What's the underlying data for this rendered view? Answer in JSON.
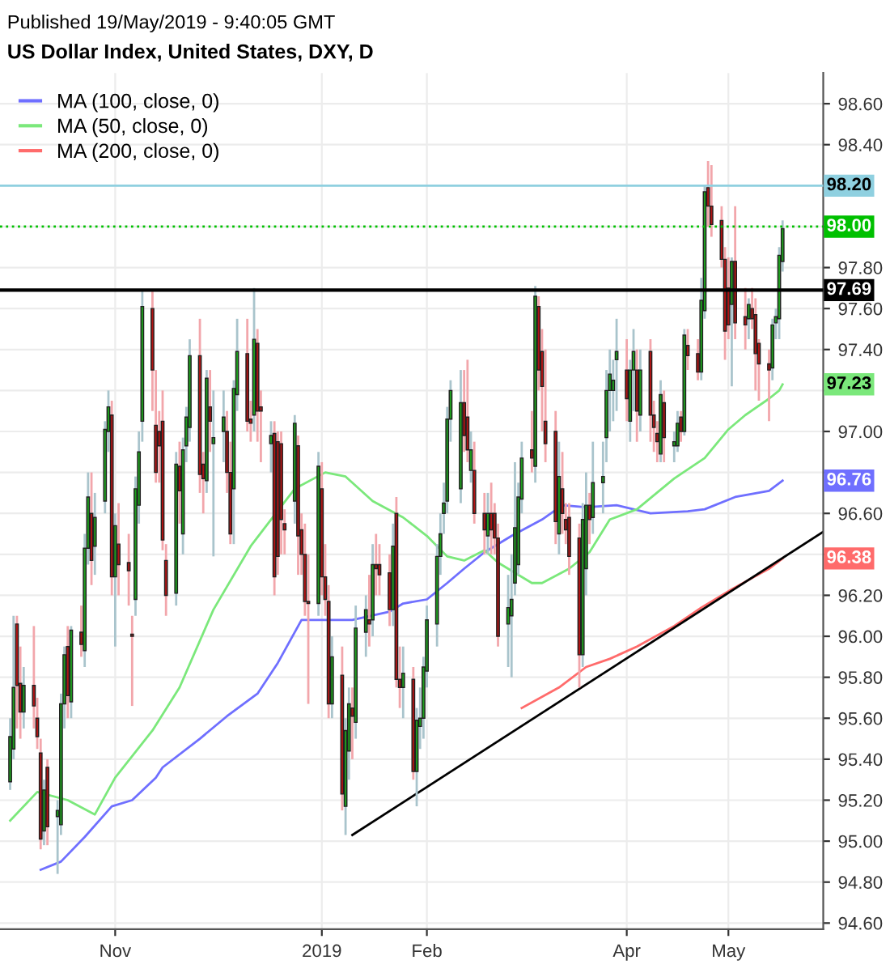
{
  "chart_data": {
    "type": "candlestick",
    "title": "US Dollar Index, United States, DXY, D",
    "annotations": [
      "Published 19/May/2019 - 9:40:05 GMT",
      {
        "text": "97.23",
        "x": "2019-05-17",
        "y": 97.23
      },
      {
        "text": "96.76",
        "x": "2019-05-17",
        "y": 96.76
      },
      {
        "text": "96.38",
        "x": "2019-05-17",
        "y": 96.38
      }
    ],
    "x": [
      "2018-10-01",
      "2018-10-02",
      "2018-10-03",
      "2018-10-04",
      "2018-10-05",
      "2018-10-08",
      "2018-10-09",
      "2018-10-10",
      "2018-10-11",
      "2018-10-12",
      "2018-10-15",
      "2018-10-16",
      "2018-10-17",
      "2018-10-18",
      "2018-10-19",
      "2018-10-22",
      "2018-10-23",
      "2018-10-24",
      "2018-10-25",
      "2018-10-26",
      "2018-10-29",
      "2018-10-30",
      "2018-10-31",
      "2018-11-01",
      "2018-11-02",
      "2018-11-05",
      "2018-11-06",
      "2018-11-07",
      "2018-11-08",
      "2018-11-09",
      "2018-11-12",
      "2018-11-13",
      "2018-11-14",
      "2018-11-15",
      "2018-11-16",
      "2018-11-19",
      "2018-11-20",
      "2018-11-21",
      "2018-11-22",
      "2018-11-23",
      "2018-11-26",
      "2018-11-27",
      "2018-11-28",
      "2018-11-29",
      "2018-11-30",
      "2018-12-03",
      "2018-12-04",
      "2018-12-05",
      "2018-12-06",
      "2018-12-07",
      "2018-12-10",
      "2018-12-11",
      "2018-12-12",
      "2018-12-13",
      "2018-12-14",
      "2018-12-17",
      "2018-12-18",
      "2018-12-19",
      "2018-12-20",
      "2018-12-21",
      "2018-12-24",
      "2018-12-25",
      "2018-12-26",
      "2018-12-27",
      "2018-12-28",
      "2018-12-31",
      "2019-01-01",
      "2019-01-02",
      "2019-01-03",
      "2019-01-04",
      "2019-01-07",
      "2019-01-08",
      "2019-01-09",
      "2019-01-10",
      "2019-01-11",
      "2019-01-14",
      "2019-01-15",
      "2019-01-16",
      "2019-01-17",
      "2019-01-18",
      "2019-01-21",
      "2019-01-22",
      "2019-01-23",
      "2019-01-24",
      "2019-01-25",
      "2019-01-28",
      "2019-01-29",
      "2019-01-30",
      "2019-01-31",
      "2019-02-01",
      "2019-02-04",
      "2019-02-05",
      "2019-02-06",
      "2019-02-07",
      "2019-02-08",
      "2019-02-11",
      "2019-02-12",
      "2019-02-13",
      "2019-02-14",
      "2019-02-15",
      "2019-02-18",
      "2019-02-19",
      "2019-02-20",
      "2019-02-21",
      "2019-02-22",
      "2019-02-25",
      "2019-02-26",
      "2019-02-27",
      "2019-02-28",
      "2019-03-01",
      "2019-03-04",
      "2019-03-05",
      "2019-03-06",
      "2019-03-07",
      "2019-03-08",
      "2019-03-11",
      "2019-03-12",
      "2019-03-13",
      "2019-03-14",
      "2019-03-15",
      "2019-03-18",
      "2019-03-19",
      "2019-03-20",
      "2019-03-21",
      "2019-03-22",
      "2019-03-25",
      "2019-03-26",
      "2019-03-27",
      "2019-03-28",
      "2019-03-29",
      "2019-04-01",
      "2019-04-02",
      "2019-04-03",
      "2019-04-04",
      "2019-04-05",
      "2019-04-08",
      "2019-04-09",
      "2019-04-10",
      "2019-04-11",
      "2019-04-12",
      "2019-04-15",
      "2019-04-16",
      "2019-04-17",
      "2019-04-18",
      "2019-04-19",
      "2019-04-22",
      "2019-04-23",
      "2019-04-24",
      "2019-04-25",
      "2019-04-26",
      "2019-04-29",
      "2019-04-30",
      "2019-05-01",
      "2019-05-02",
      "2019-05-03",
      "2019-05-06",
      "2019-05-07",
      "2019-05-08",
      "2019-05-09",
      "2019-05-10",
      "2019-05-13",
      "2019-05-14",
      "2019-05-15",
      "2019-05-16",
      "2019-05-17"
    ],
    "ohlc": [
      [
        95.29,
        95.6,
        95.25,
        95.51
      ],
      [
        95.45,
        96.1,
        95.4,
        95.75
      ],
      [
        96.06,
        96.1,
        95.55,
        95.76
      ],
      [
        95.77,
        95.95,
        95.5,
        95.63
      ],
      [
        95.63,
        95.85,
        95.55,
        95.76
      ],
      [
        95.76,
        96.05,
        95.55,
        95.66
      ],
      [
        95.6,
        95.7,
        95.45,
        95.51
      ],
      [
        95.43,
        95.5,
        94.96,
        95.01
      ],
      [
        95.05,
        95.3,
        94.98,
        95.25
      ],
      [
        95.36,
        95.4,
        94.98,
        95.07
      ],
      [
        95.12,
        95.2,
        94.84,
        95.15
      ],
      [
        95.08,
        95.72,
        95.03,
        95.67
      ],
      [
        95.67,
        95.95,
        95.55,
        95.91
      ],
      [
        95.95,
        96.05,
        95.6,
        95.71
      ],
      [
        95.68,
        96.05,
        95.6,
        96.03
      ],
      [
        96.02,
        96.15,
        95.9,
        95.96
      ],
      [
        95.93,
        96.5,
        95.85,
        96.43
      ],
      [
        96.43,
        96.8,
        96.35,
        96.68
      ],
      [
        96.6,
        96.8,
        96.25,
        96.37
      ],
      [
        96.44,
        96.7,
        96.3,
        96.58
      ],
      [
        96.66,
        97.05,
        96.6,
        97.01
      ],
      [
        97.0,
        97.2,
        96.9,
        97.12
      ],
      [
        97.08,
        97.15,
        96.2,
        96.29
      ],
      [
        96.29,
        96.6,
        95.95,
        96.54
      ],
      [
        96.45,
        96.65,
        96.2,
        96.35
      ],
      [
        96.36,
        96.5,
        96.15,
        96.32
      ],
      [
        96.01,
        96.1,
        95.66,
        96.0
      ],
      [
        96.18,
        96.78,
        96.1,
        96.72
      ],
      [
        96.64,
        97.0,
        96.55,
        96.9
      ],
      [
        97.05,
        97.69,
        96.95,
        97.61
      ],
      [
        97.6,
        97.69,
        97.1,
        97.3
      ],
      [
        97.03,
        97.3,
        96.75,
        96.8
      ],
      [
        97.0,
        97.1,
        96.75,
        96.93
      ],
      [
        97.05,
        97.2,
        96.42,
        96.47
      ],
      [
        96.37,
        96.45,
        96.1,
        96.2
      ],
      [
        96.21,
        96.9,
        96.15,
        96.84
      ],
      [
        96.83,
        96.95,
        96.55,
        96.71
      ],
      [
        96.5,
        96.97,
        96.4,
        96.91
      ],
      [
        96.93,
        97.12,
        96.85,
        97.07
      ],
      [
        97.02,
        97.45,
        96.95,
        97.37
      ],
      [
        97.37,
        97.55,
        96.7,
        96.79
      ],
      [
        96.84,
        96.9,
        96.6,
        96.77
      ],
      [
        96.76,
        97.3,
        96.7,
        97.26
      ],
      [
        97.12,
        97.3,
        96.9,
        97.05
      ],
      [
        96.94,
        97.2,
        96.39,
        96.97
      ],
      [
        97.0,
        97.2,
        96.85,
        97.07
      ],
      [
        97.0,
        97.1,
        96.7,
        96.8
      ],
      [
        96.8,
        96.95,
        96.45,
        96.5
      ],
      [
        96.72,
        97.25,
        96.45,
        97.21
      ],
      [
        97.18,
        97.55,
        97.1,
        97.39
      ],
      [
        97.38,
        97.55,
        97.0,
        97.05
      ],
      [
        97.06,
        97.15,
        96.95,
        97.04
      ],
      [
        97.08,
        97.7,
        97.0,
        97.45
      ],
      [
        97.43,
        97.5,
        96.95,
        97.1
      ],
      [
        97.12,
        97.2,
        96.85,
        97.1
      ],
      [
        96.94,
        97.05,
        96.8,
        96.98
      ],
      [
        96.99,
        97.05,
        96.2,
        96.29
      ],
      [
        96.95,
        97.0,
        96.3,
        96.39
      ],
      [
        96.94,
        97.0,
        96.4,
        96.57
      ],
      [
        96.55,
        96.62,
        96.4,
        96.52
      ],
      [
        96.66,
        97.08,
        96.55,
        97.04
      ],
      [
        96.93,
        96.98,
        96.3,
        96.49
      ],
      [
        96.52,
        96.6,
        96.3,
        96.4
      ],
      [
        96.4,
        96.55,
        96.1,
        96.17
      ],
      [
        96.17,
        96.4,
        95.67,
        96.16
      ],
      [
        96.16,
        96.9,
        96.1,
        96.83
      ],
      [
        96.72,
        96.85,
        96.2,
        96.29
      ],
      [
        96.29,
        96.45,
        96.1,
        96.18
      ],
      [
        96.17,
        96.25,
        95.6,
        95.67
      ],
      [
        95.67,
        96.0,
        95.6,
        95.9
      ],
      [
        95.81,
        95.95,
        95.15,
        95.23
      ],
      [
        95.17,
        95.6,
        95.03,
        95.54
      ],
      [
        95.44,
        95.75,
        95.3,
        95.67
      ],
      [
        95.65,
        95.75,
        95.4,
        95.61
      ],
      [
        95.58,
        96.15,
        95.5,
        96.04
      ],
      [
        96.02,
        96.2,
        95.9,
        96.13
      ],
      [
        96.08,
        96.3,
        95.95,
        96.06
      ],
      [
        96.08,
        96.45,
        96.0,
        96.35
      ],
      [
        96.35,
        96.5,
        96.2,
        96.33
      ],
      [
        96.35,
        96.45,
        96.2,
        96.3
      ],
      [
        96.31,
        96.4,
        96.05,
        96.13
      ],
      [
        96.13,
        96.55,
        96.05,
        96.44
      ],
      [
        96.6,
        96.68,
        95.75,
        95.79
      ],
      [
        95.79,
        95.95,
        95.65,
        95.75
      ],
      [
        95.75,
        95.95,
        95.6,
        95.82
      ],
      [
        95.79,
        95.85,
        95.3,
        95.34
      ],
      [
        95.34,
        95.65,
        95.17,
        95.59
      ],
      [
        95.56,
        95.75,
        95.45,
        95.6
      ],
      [
        95.6,
        95.9,
        95.5,
        95.85
      ],
      [
        95.83,
        96.15,
        95.75,
        96.08
      ],
      [
        96.06,
        96.45,
        95.95,
        96.39
      ],
      [
        96.39,
        96.6,
        96.3,
        96.5
      ],
      [
        96.6,
        96.75,
        96.5,
        96.65
      ],
      [
        96.66,
        97.12,
        96.6,
        97.06
      ],
      [
        97.06,
        97.25,
        96.95,
        97.2
      ],
      [
        96.72,
        97.3,
        96.65,
        97.14
      ],
      [
        97.14,
        97.3,
        96.9,
        96.98
      ],
      [
        97.07,
        97.35,
        96.85,
        96.91
      ],
      [
        96.81,
        97.0,
        96.75,
        96.91
      ],
      [
        96.81,
        96.95,
        96.55,
        96.6
      ],
      [
        96.6,
        96.7,
        96.4,
        96.52
      ],
      [
        96.49,
        96.7,
        96.4,
        96.6
      ],
      [
        96.6,
        96.75,
        96.4,
        96.52
      ],
      [
        96.6,
        96.65,
        96.4,
        96.48
      ],
      [
        96.48,
        96.55,
        95.95,
        96.0
      ],
      [
        96.06,
        96.3,
        95.85,
        96.14
      ],
      [
        96.1,
        96.4,
        95.8,
        96.18
      ],
      [
        96.26,
        96.85,
        96.2,
        96.53
      ],
      [
        96.35,
        96.75,
        96.3,
        96.68
      ],
      [
        96.67,
        96.95,
        96.6,
        96.87
      ],
      [
        96.91,
        97.1,
        96.8,
        96.87
      ],
      [
        96.83,
        97.71,
        96.75,
        97.66
      ],
      [
        97.61,
        97.66,
        97.2,
        97.3
      ],
      [
        97.39,
        97.5,
        97.0,
        97.22
      ],
      [
        97.05,
        97.4,
        96.85,
        96.94
      ],
      [
        97.0,
        97.1,
        96.45,
        96.56
      ],
      [
        96.5,
        96.95,
        96.4,
        96.78
      ],
      [
        96.72,
        96.9,
        96.5,
        96.6
      ],
      [
        96.57,
        96.65,
        96.45,
        96.52
      ],
      [
        96.58,
        96.65,
        96.3,
        96.39
      ],
      [
        96.48,
        96.55,
        95.75,
        95.91
      ],
      [
        95.91,
        96.65,
        95.85,
        96.57
      ],
      [
        96.33,
        96.8,
        96.2,
        96.64
      ],
      [
        96.64,
        96.7,
        96.45,
        96.57
      ],
      [
        96.58,
        96.95,
        96.5,
        96.75
      ],
      [
        96.75,
        96.95,
        96.6,
        96.78
      ],
      [
        96.97,
        97.3,
        96.85,
        97.2
      ],
      [
        97.2,
        97.4,
        97.0,
        97.28
      ],
      [
        97.2,
        97.35,
        97.05,
        97.25
      ],
      [
        97.35,
        97.55,
        97.1,
        97.39
      ],
      [
        97.3,
        97.45,
        97.05,
        97.16
      ],
      [
        97.05,
        97.35,
        96.95,
        97.3
      ],
      [
        97.3,
        97.5,
        97.1,
        97.39
      ],
      [
        97.3,
        97.4,
        96.95,
        97.1
      ],
      [
        97.08,
        97.4,
        97.0,
        97.3
      ],
      [
        97.39,
        97.45,
        96.95,
        97.08
      ],
      [
        97.08,
        97.15,
        96.9,
        97.02
      ],
      [
        96.99,
        97.05,
        96.85,
        96.95
      ],
      [
        96.89,
        97.25,
        96.85,
        97.18
      ],
      [
        97.14,
        97.2,
        96.85,
        96.97
      ],
      [
        96.93,
        97.0,
        96.85,
        96.95
      ],
      [
        96.93,
        97.1,
        96.9,
        97.04
      ],
      [
        97.07,
        97.1,
        96.95,
        97.0
      ],
      [
        97.0,
        97.5,
        96.98,
        97.47
      ],
      [
        97.42,
        97.5,
        97.3,
        97.37
      ],
      [
        97.38,
        97.45,
        97.25,
        97.29
      ],
      [
        97.29,
        97.75,
        97.25,
        97.64
      ],
      [
        97.59,
        98.2,
        97.55,
        98.17
      ],
      [
        98.19,
        98.32,
        98.0,
        98.1
      ],
      [
        98.1,
        98.3,
        97.95,
        98.01
      ],
      [
        98.03,
        98.1,
        97.8,
        97.84
      ],
      [
        97.84,
        97.9,
        97.35,
        97.49
      ],
      [
        97.7,
        97.85,
        97.45,
        97.52
      ],
      [
        97.62,
        97.85,
        97.22,
        97.83
      ],
      [
        97.83,
        98.1,
        97.45,
        97.53
      ],
      [
        97.56,
        97.7,
        97.4,
        97.52
      ],
      [
        97.55,
        97.65,
        97.45,
        97.62
      ],
      [
        97.6,
        97.7,
        97.5,
        97.55
      ],
      [
        97.57,
        97.65,
        97.2,
        97.38
      ],
      [
        97.43,
        97.45,
        97.15,
        97.33
      ],
      [
        97.33,
        97.4,
        97.05,
        97.3
      ],
      [
        97.31,
        97.55,
        97.25,
        97.52
      ],
      [
        97.53,
        97.6,
        97.45,
        97.56
      ],
      [
        97.55,
        97.9,
        97.45,
        97.86
      ],
      [
        97.83,
        98.03,
        97.78,
        97.99
      ]
    ],
    "series": [
      {
        "name": "MA (100, close, 0)",
        "type": "line",
        "color": "#6f6fff",
        "x": [
          "2018-10-10",
          "2018-10-16",
          "2018-10-23",
          "2018-10-31",
          "2018-11-06",
          "2018-11-13",
          "2018-11-15",
          "2018-11-26",
          "2018-12-04",
          "2018-12-13",
          "2018-12-19",
          "2018-12-26",
          "2019-01-02",
          "2019-01-10",
          "2019-01-21",
          "2019-01-25",
          "2019-02-01",
          "2019-02-07",
          "2019-02-12",
          "2019-02-18",
          "2019-02-26",
          "2019-03-07",
          "2019-03-13",
          "2019-03-20",
          "2019-03-29",
          "2019-04-08",
          "2019-04-19",
          "2019-04-24",
          "2019-05-03",
          "2019-05-13",
          "2019-05-17"
        ],
        "values": [
          94.86,
          94.9,
          95.02,
          95.17,
          95.2,
          95.31,
          95.36,
          95.5,
          95.61,
          95.72,
          95.87,
          96.08,
          96.08,
          96.08,
          96.12,
          96.16,
          96.18,
          96.26,
          96.33,
          96.41,
          96.49,
          96.57,
          96.64,
          96.63,
          96.64,
          96.6,
          96.61,
          96.62,
          96.68,
          96.71,
          96.76
        ]
      },
      {
        "name": "MA (50, close, 0)",
        "type": "line",
        "color": "#7be87b",
        "x": [
          "2018-10-01",
          "2018-10-09",
          "2018-10-18",
          "2018-10-26",
          "2018-11-01",
          "2018-11-12",
          "2018-11-20",
          "2018-11-30",
          "2018-12-11",
          "2018-12-17",
          "2018-12-24",
          "2019-01-02",
          "2019-01-08",
          "2019-01-16",
          "2019-01-25",
          "2019-02-01",
          "2019-02-07",
          "2019-02-12",
          "2019-02-18",
          "2019-02-22",
          "2019-03-04",
          "2019-03-07",
          "2019-03-15",
          "2019-03-21",
          "2019-03-27",
          "2019-04-04",
          "2019-04-15",
          "2019-04-24",
          "2019-05-01",
          "2019-05-06",
          "2019-05-13",
          "2019-05-16",
          "2019-05-17"
        ],
        "values": [
          95.1,
          95.24,
          95.2,
          95.13,
          95.31,
          95.54,
          95.75,
          96.13,
          96.44,
          96.57,
          96.72,
          96.8,
          96.78,
          96.66,
          96.58,
          96.49,
          96.39,
          96.37,
          96.42,
          96.36,
          96.26,
          96.26,
          96.33,
          96.41,
          96.57,
          96.62,
          96.77,
          96.87,
          97.01,
          97.08,
          97.16,
          97.2,
          97.23
        ]
      },
      {
        "name": "MA (200, close, 0)",
        "type": "line",
        "color": "#ff6b6b",
        "x": [
          "2019-03-01",
          "2019-03-12",
          "2019-03-20",
          "2019-03-27",
          "2019-04-04",
          "2019-04-15",
          "2019-04-23",
          "2019-05-02",
          "2019-05-13",
          "2019-05-17"
        ],
        "values": [
          95.65,
          95.75,
          95.85,
          95.89,
          95.95,
          96.05,
          96.14,
          96.23,
          96.33,
          96.38
        ]
      },
      {
        "type": "line",
        "color": "#000000",
        "x": [
          "2019-01-10",
          "2019-05-29"
        ],
        "values": [
          95.03,
          96.51
        ]
      }
    ],
    "ref_lines": [
      {
        "axis": "y",
        "value": 98.2,
        "label": "98.20",
        "color": "#8fd0e0",
        "line_style": "solid"
      },
      {
        "axis": "y",
        "value": 98.0,
        "label": "98.00",
        "color": "#00c000",
        "line_style": "dotted"
      },
      {
        "axis": "y",
        "value": 97.69,
        "label": "97.69",
        "color": "#000000",
        "line_style": "solid"
      }
    ],
    "xlim": [
      "2018-09-28",
      "2019-05-29"
    ],
    "xticks": [
      {
        "value": "2018-11-01",
        "label": "Nov"
      },
      {
        "value": "2019-01-01",
        "label": "2019"
      },
      {
        "value": "2019-02-01",
        "label": "Feb"
      },
      {
        "value": "2019-04-01",
        "label": "Apr"
      },
      {
        "value": "2019-05-01",
        "label": "May"
      }
    ],
    "ylim": [
      94.57,
      98.75
    ],
    "yticks": [
      {
        "value": 94.6,
        "label": "94.60"
      },
      {
        "value": 94.8,
        "label": "94.80"
      },
      {
        "value": 95.0,
        "label": "95.00"
      },
      {
        "value": 95.2,
        "label": "95.20"
      },
      {
        "value": 95.4,
        "label": "95.40"
      },
      {
        "value": 95.6,
        "label": "95.60"
      },
      {
        "value": 95.8,
        "label": "95.80"
      },
      {
        "value": 96.0,
        "label": "96.00"
      },
      {
        "value": 96.2,
        "label": "96.20"
      },
      {
        "value": 96.4,
        "label": null
      },
      {
        "value": 96.6,
        "label": "96.60"
      },
      {
        "value": 96.8,
        "label": null
      },
      {
        "value": 97.0,
        "label": "97.00"
      },
      {
        "value": 97.2,
        "label": null
      },
      {
        "value": 97.4,
        "label": "97.40"
      },
      {
        "value": 97.6,
        "label": "97.60"
      },
      {
        "value": 97.8,
        "label": "97.80"
      },
      {
        "value": 98.0,
        "label": null
      },
      {
        "value": 98.2,
        "label": null
      },
      {
        "value": 98.4,
        "label": "98.40"
      },
      {
        "value": 98.6,
        "label": "98.60"
      }
    ],
    "grid": true,
    "legend": "top left"
  }
}
